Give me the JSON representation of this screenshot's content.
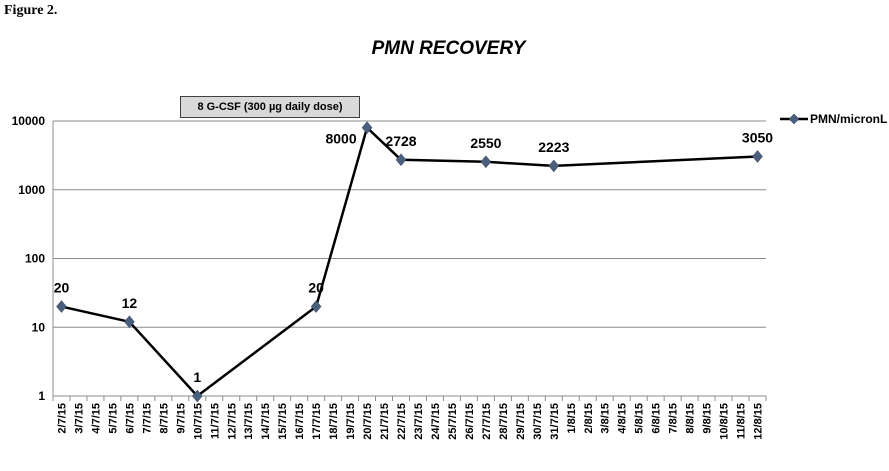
{
  "figure_label": "Figure 2.",
  "chart_data": {
    "type": "line",
    "title": "PMN RECOVERY",
    "annotation": "8 G-CSF  (300 µg daily dose)",
    "yscale": "log",
    "ylim": [
      1,
      10000
    ],
    "y_ticks": [
      "1",
      "10",
      "100",
      "1000",
      "10000"
    ],
    "grid": true,
    "legend_position": "top-right",
    "categories": [
      "2/7/15",
      "3/7/15",
      "4/7/15",
      "5/7/15",
      "6/7/15",
      "7/7/15",
      "8/7/15",
      "9/7/15",
      "10/7/15",
      "11/7/15",
      "12/7/15",
      "13/7/15",
      "14/7/15",
      "15/7/15",
      "16/7/15",
      "17/7/15",
      "18/7/15",
      "19/7/15",
      "20/7/15",
      "21/7/15",
      "22/7/15",
      "23/7/15",
      "24/7/15",
      "25/7/15",
      "26/7/15",
      "27/7/15",
      "28/7/15",
      "29/7/15",
      "30/7/15",
      "31/7/15",
      "1/8/15",
      "2/8/15",
      "3/8/15",
      "4/8/15",
      "5/8/15",
      "6/8/15",
      "7/8/15",
      "8/8/15",
      "9/8/15",
      "10/8/15",
      "11/8/15",
      "12/8/15"
    ],
    "series": [
      {
        "name": "PMN/micronL",
        "color": "#000000",
        "marker_color": "#4a5f7e",
        "points": [
          {
            "x": "2/7/15",
            "y": 20,
            "label": "20"
          },
          {
            "x": "6/7/15",
            "y": 12,
            "label": "12"
          },
          {
            "x": "10/7/15",
            "y": 1,
            "label": "1"
          },
          {
            "x": "17/7/15",
            "y": 20,
            "label": "20"
          },
          {
            "x": "20/7/15",
            "y": 8000,
            "label": "8000"
          },
          {
            "x": "22/7/15",
            "y": 2728,
            "label": "2728"
          },
          {
            "x": "27/7/15",
            "y": 2550,
            "label": "2550"
          },
          {
            "x": "31/7/15",
            "y": 2223,
            "label": "2223"
          },
          {
            "x": "12/8/15",
            "y": 3050,
            "label": "3050"
          }
        ]
      }
    ]
  }
}
